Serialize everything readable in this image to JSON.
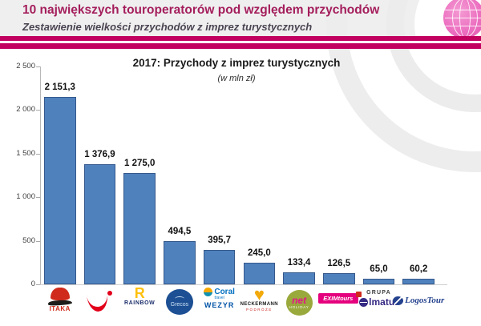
{
  "header": {
    "title": "10 największych touroperatorów pod względem przychodów",
    "subtitle": "Zestawienie wielkości przychodów z imprez turystycznych"
  },
  "chart": {
    "title": "2017: Przychody z imprez turystycznych",
    "unit_note": "(w mln zł)"
  },
  "chart_data": {
    "type": "bar",
    "title": "2017: Przychody z imprez turystycznych",
    "subtitle": "(w mln zł)",
    "categories": [
      "ITAKA",
      "TUI",
      "RAINBOW",
      "Grecos",
      "Coral Travel WEZYR",
      "NECKERMANN",
      "net HOLIDAY",
      "EXIMtours",
      "GRUPA Almatur",
      "LogosTour"
    ],
    "values": [
      2151.3,
      1376.9,
      1275.0,
      494.5,
      395.7,
      245.0,
      133.4,
      126.5,
      65.0,
      60.2
    ],
    "value_labels": [
      "2 151,3",
      "1 376,9",
      "1 275,0",
      "494,5",
      "395,7",
      "245,0",
      "133,4",
      "126,5",
      "65,0",
      "60,2"
    ],
    "xlabel": "",
    "ylabel": "",
    "ylim": [
      0,
      2500
    ],
    "ytick_labels": [
      "0",
      "500",
      "1 000",
      "1 500",
      "2 000",
      "2 500"
    ],
    "grid": false,
    "legend": false,
    "bar_color": "#4f81bd",
    "bar_border_color": "#36598c"
  },
  "colors": {
    "accent_magenta": "#c20060",
    "header_title": "#a41e5c",
    "header_bg": "#efefef",
    "bar_fill": "#4f81bd"
  },
  "logos": {
    "itaka": {
      "label": "ITAKA"
    },
    "rainbow": {
      "letter": "R",
      "label": "RAINBOW"
    },
    "grecos": {
      "label": "Grecos"
    },
    "coral": {
      "brand": "Coral",
      "sub": "travel",
      "wezyr": "WEZYR"
    },
    "neckermann": {
      "heart": "♥",
      "label": "NECKERMANN",
      "sub": "PODRÓŻE"
    },
    "net": {
      "script": "net",
      "sub": "HOLIDAY"
    },
    "exim": {
      "label": "EXIMtours"
    },
    "almatur": {
      "top": "GRUPA",
      "rest": "lmatur"
    },
    "logostour": {
      "label": "LogosTour"
    }
  }
}
